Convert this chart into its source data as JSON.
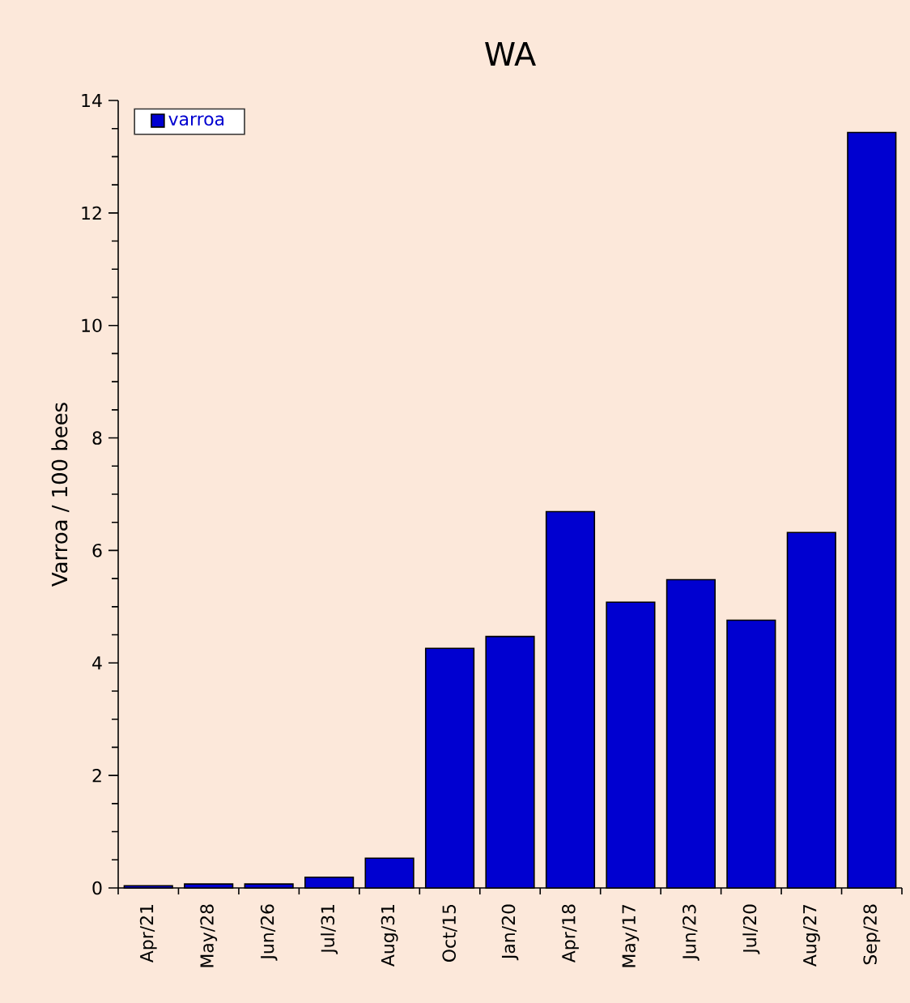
{
  "chart_data": {
    "type": "bar",
    "title": "WA",
    "ylabel": "Varroa / 100 bees",
    "categories": [
      "Apr/21",
      "May/28",
      "Jun/26",
      "Jul/31",
      "Aug/31",
      "Oct/15",
      "Jan/20",
      "Apr/18",
      "May/17",
      "Jun/23",
      "Jul/20",
      "Aug/27",
      "Sep/28"
    ],
    "series": [
      {
        "name": "varroa",
        "color": "#0000d0",
        "values": [
          0.04,
          0.07,
          0.07,
          0.19,
          0.53,
          4.26,
          4.47,
          6.69,
          5.08,
          5.48,
          4.76,
          6.32,
          13.43
        ]
      }
    ],
    "ylim": [
      0,
      14
    ],
    "yticks": [
      0,
      2,
      4,
      6,
      8,
      10,
      12,
      14
    ],
    "grid": false,
    "legend": "top left"
  }
}
